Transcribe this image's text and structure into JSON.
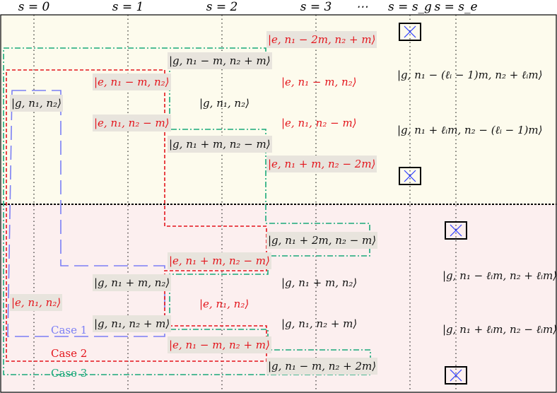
{
  "headers": [
    "s = 0",
    "s = 1",
    "s = 2",
    "s = 3",
    "⋯",
    "s = s_g",
    "s = s_e"
  ],
  "colors": {
    "g_region": "#fdfbed",
    "e_region": "#fcefef",
    "highlight": "#e8e4dd",
    "red": "#e3141b",
    "blue_case": "#7b7ff5",
    "green_case": "#1aa97a",
    "cross": "#2b3cff"
  },
  "states": {
    "s0_g": "|g, n₁, n₂⟩",
    "s0_e": "|e, n₁, n₂⟩",
    "s1_e_a": "|e, n₁ − m, n₂⟩",
    "s1_e_b": "|e, n₁, n₂ − m⟩",
    "s1_g_a": "|g, n₁ + m, n₂⟩",
    "s1_g_b": "|g, n₁, n₂ + m⟩",
    "s2_g_a": "|g, n₁ − m, n₂ + m⟩",
    "s2_g_mid": "|g, n₁, n₂⟩",
    "s2_g_b": "|g, n₁ + m, n₂ − m⟩",
    "s2_e_a": "|e, n₁ + m, n₂ − m⟩",
    "s2_e_mid": "|e, n₁, n₂⟩",
    "s2_e_b": "|e, n₁ − m, n₂ + m⟩",
    "s3_e_a": "|e, n₁ − 2m, n₂ + m⟩",
    "s3_e_b": "|e, n₁ − m, n₂⟩",
    "s3_e_c": "|e, n₁, n₂ − m⟩",
    "s3_e_d": "|e, n₁ + m, n₂ − 2m⟩",
    "s3_g_a": "|g, n₁ + 2m, n₂ − m⟩",
    "s3_g_b": "|g, n₁ + m, n₂⟩",
    "s3_g_c": "|g, n₁, n₂ + m⟩",
    "s3_g_d": "|g, n₁ − m, n₂ + 2m⟩",
    "sg_a": "|g, n₁ − (ℓᵢ − 1)m, n₂ + ℓᵢm⟩",
    "sg_b": "|g, n₁ + ℓᵢm, n₂ − (ℓᵢ − 1)m⟩",
    "se_a": "|g, n₁ − ℓᵢm, n₂ + ℓᵢm⟩",
    "se_b": "|g, n₁ + ℓᵢm, n₂ − ℓᵢm⟩"
  },
  "cases": {
    "case1": "Case 1",
    "case2": "Case 2",
    "case3": "Case 3"
  }
}
